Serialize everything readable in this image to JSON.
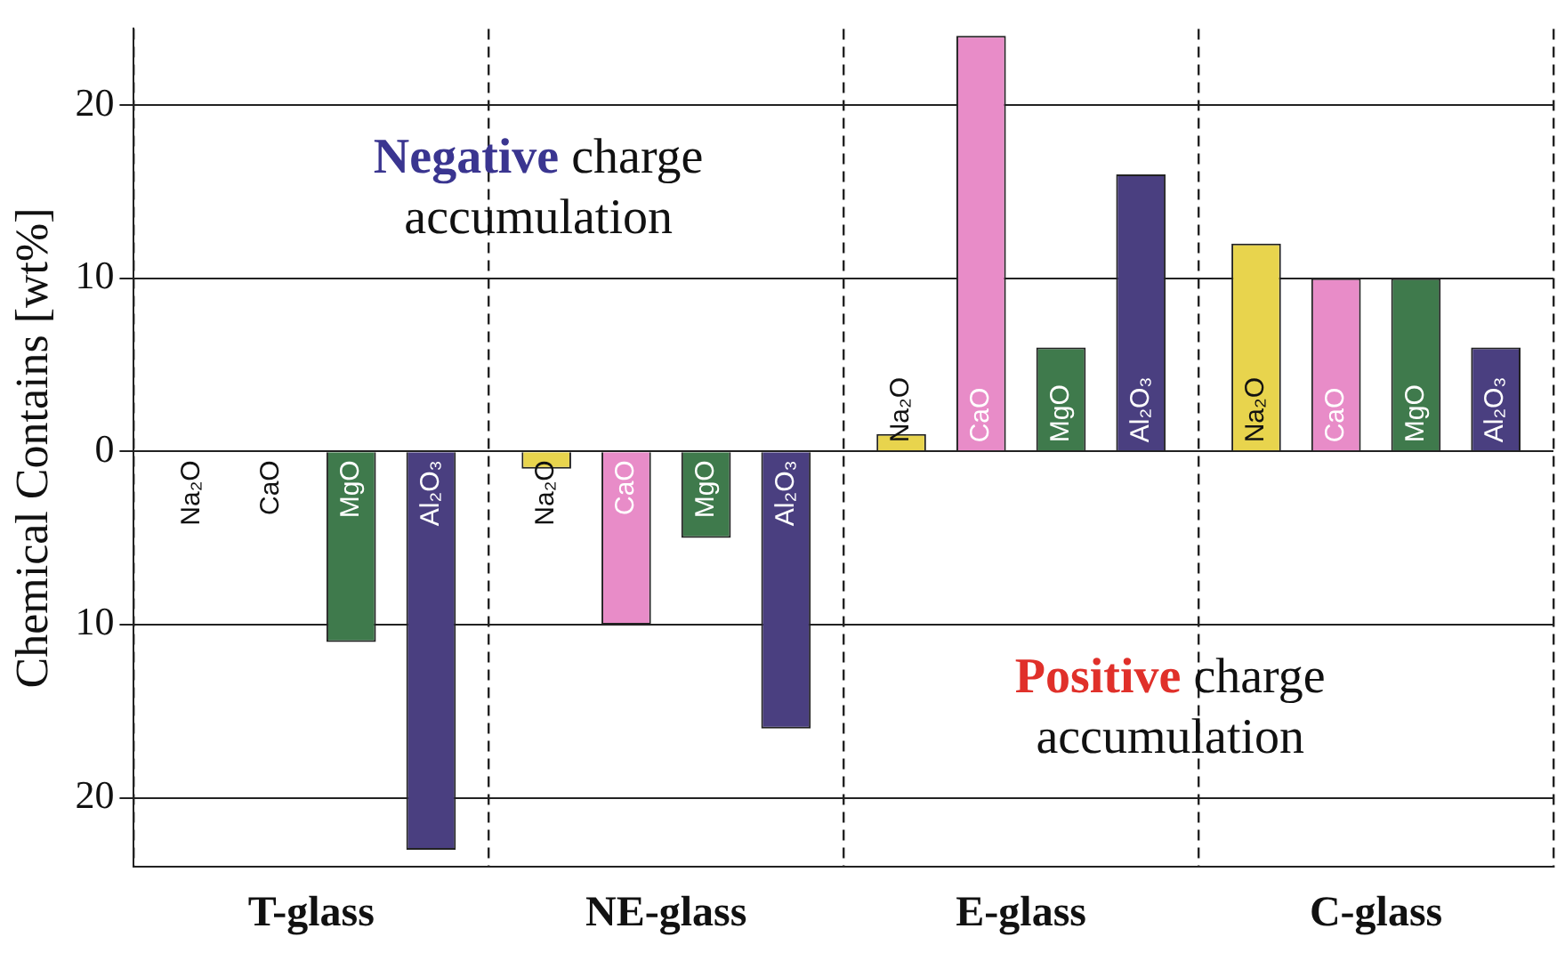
{
  "chart_data": {
    "type": "bar",
    "ylabel": "Chemical Contains [wt%]",
    "categories": [
      "T-glass",
      "NE-glass",
      "E-glass",
      "C-glass"
    ],
    "series": [
      {
        "name": "Na₂O",
        "color": "#e8d44d",
        "values": [
          0,
          -1,
          1,
          12
        ]
      },
      {
        "name": "CaO",
        "color": "#e88cc8",
        "values": [
          0,
          -10,
          24,
          10
        ]
      },
      {
        "name": "MgO",
        "color": "#3f7a4c",
        "values": [
          -11,
          -5,
          6,
          10
        ]
      },
      {
        "name": "Al₂O₃",
        "color": "#4a3f80",
        "values": [
          -23,
          -16,
          16,
          6
        ]
      }
    ],
    "ylim": [
      -24,
      24.4
    ],
    "yticks": [
      {
        "value": -20,
        "label": "20"
      },
      {
        "value": -10,
        "label": "10"
      },
      0,
      10,
      20
    ],
    "grid": true,
    "legend": false,
    "annotations": [
      "Negative charge accumulation",
      "Positive charge accumulation"
    ]
  }
}
